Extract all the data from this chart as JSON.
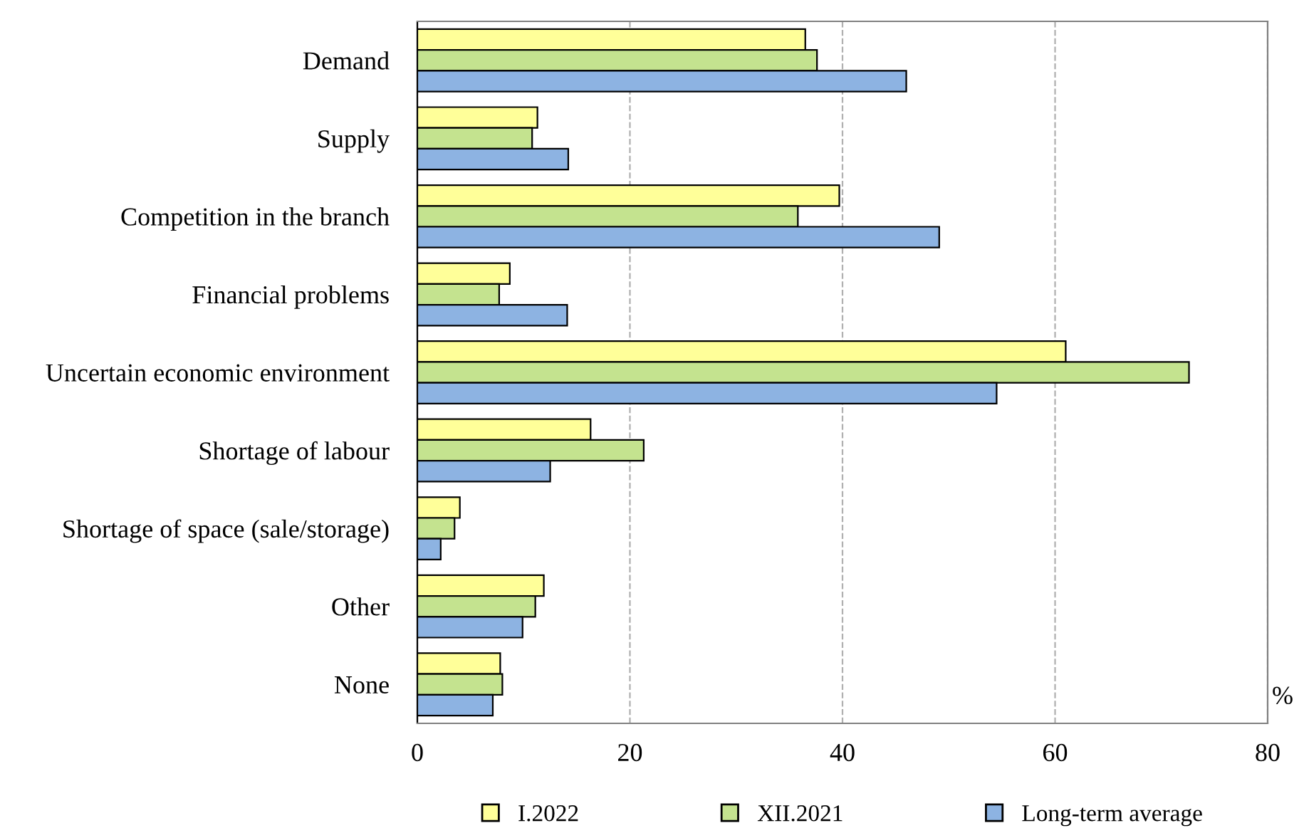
{
  "chart_data": {
    "type": "bar",
    "orientation": "horizontal",
    "xlabel": "%",
    "categories": [
      "Demand",
      "Supply",
      "Competition in the branch",
      "Financial problems",
      "Uncertain economic environment",
      "Shortage of labour",
      "Shortage of space (sale/storage)",
      "Other",
      "None"
    ],
    "series": [
      {
        "name": "I.2022",
        "color": "#ffff99",
        "values": [
          36.5,
          11.3,
          39.7,
          8.7,
          61.0,
          16.3,
          4.0,
          11.9,
          7.8
        ]
      },
      {
        "name": "XII.2021",
        "color": "#c4e38f",
        "values": [
          37.6,
          10.8,
          35.8,
          7.7,
          72.6,
          21.3,
          3.5,
          11.1,
          8.0
        ]
      },
      {
        "name": "Long-term average",
        "color": "#8db3e2",
        "values": [
          46.0,
          14.2,
          49.1,
          14.1,
          54.5,
          12.5,
          2.2,
          9.9,
          7.1
        ]
      }
    ],
    "xlim": [
      0,
      80
    ],
    "xticks": [
      0,
      20,
      40,
      60,
      80
    ],
    "grid": "x",
    "legend": "bottom"
  }
}
